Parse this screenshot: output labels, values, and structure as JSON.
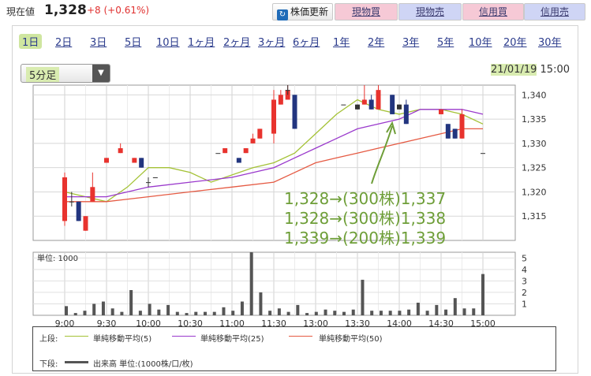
{
  "header": {
    "price_label": "現在値",
    "price_value": "1,328",
    "price_change": "+8 (+0.61%)",
    "buttons": {
      "refresh": "株価更新",
      "cash_buy": "現物買",
      "cash_sell": "現物売",
      "margin_buy": "信用買",
      "margin_sell": "信用売"
    }
  },
  "period_tabs": [
    "1日",
    "2日",
    "3日",
    "5日",
    "10日",
    "1ヶ月",
    "2ヶ月",
    "3ヶ月",
    "6ヶ月",
    "1年",
    "2年",
    "3年",
    "5年",
    "10年",
    "20年",
    "30年"
  ],
  "active_period": "1日",
  "range_select": {
    "value": "5分足"
  },
  "timestamp": {
    "date": "21/01/19",
    "time": "15:00"
  },
  "colors": {
    "up": "#e8332e",
    "down": "#22357f",
    "ma5": "#a4c236",
    "ma25": "#9a39cc",
    "ma50": "#e55a43",
    "volume": "#555555",
    "annotation": "#6e9e38"
  },
  "chart_data": [
    {
      "type": "candlestick",
      "title": "",
      "x_tick_labels": [
        "9:00",
        "9:30",
        "10:00",
        "10:30",
        "11:00",
        "11:30",
        "13:00",
        "13:30",
        "14:00",
        "14:30",
        "15:00"
      ],
      "y_ticks": [
        1315,
        1320,
        1325,
        1330,
        1335,
        1340
      ],
      "y_tick_labels": [
        "1,315",
        "1,320",
        "1,325",
        "1,330",
        "1,335",
        "1,340"
      ],
      "ylim": [
        1310,
        1342
      ],
      "candles": [
        {
          "t": "9:00",
          "o": 1323,
          "h": 1324,
          "l": 1313,
          "c": 1314,
          "dir": "up"
        },
        {
          "t": "9:05",
          "o": 1318,
          "h": 1320,
          "l": 1317,
          "c": 1318,
          "dir": "flat"
        },
        {
          "t": "9:10",
          "o": 1318,
          "h": 1318,
          "l": 1314,
          "c": 1314,
          "dir": "down"
        },
        {
          "t": "9:15",
          "o": 1315,
          "h": 1315,
          "l": 1312,
          "c": 1312,
          "dir": "up"
        },
        {
          "t": "9:20",
          "o": 1321,
          "h": 1324,
          "l": 1318,
          "c": 1318,
          "dir": "up"
        },
        {
          "t": "9:30",
          "o": 1327,
          "h": 1327,
          "l": 1326,
          "c": 1326,
          "dir": "up"
        },
        {
          "t": "9:40",
          "o": 1329,
          "h": 1330,
          "l": 1328,
          "c": 1328,
          "dir": "up"
        },
        {
          "t": "9:50",
          "o": 1327,
          "h": 1327,
          "l": 1326,
          "c": 1326,
          "dir": "up"
        },
        {
          "t": "9:55",
          "o": 1327,
          "h": 1327,
          "l": 1325,
          "c": 1325,
          "dir": "down"
        },
        {
          "t": "10:00",
          "o": 1322,
          "h": 1323,
          "l": 1321,
          "c": 1322,
          "dir": "flat"
        },
        {
          "t": "10:05",
          "o": 1323,
          "h": 1323,
          "l": 1323,
          "c": 1323,
          "dir": "flat"
        },
        {
          "t": "10:50",
          "o": 1328,
          "h": 1328,
          "l": 1328,
          "c": 1328,
          "dir": "flat"
        },
        {
          "t": "10:55",
          "o": 1329,
          "h": 1329,
          "l": 1328,
          "c": 1328,
          "dir": "up"
        },
        {
          "t": "11:05",
          "o": 1327,
          "h": 1327,
          "l": 1326,
          "c": 1326,
          "dir": "down"
        },
        {
          "t": "11:10",
          "o": 1329,
          "h": 1329,
          "l": 1328,
          "c": 1328,
          "dir": "up"
        },
        {
          "t": "11:15",
          "o": 1331,
          "h": 1332,
          "l": 1330,
          "c": 1330,
          "dir": "up"
        },
        {
          "t": "11:20",
          "o": 1333,
          "h": 1333,
          "l": 1331,
          "c": 1331,
          "dir": "up"
        },
        {
          "t": "11:30",
          "o": 1339,
          "h": 1341,
          "l": 1330,
          "c": 1332,
          "dir": "up"
        },
        {
          "t": "11:35",
          "o": 1340,
          "h": 1340,
          "l": 1338,
          "c": 1338,
          "dir": "up"
        },
        {
          "t": "11:40",
          "o": 1341,
          "h": 1342,
          "l": 1339,
          "c": 1339,
          "dir": "up"
        },
        {
          "t": "12:35",
          "o": 1339,
          "h": 1341,
          "l": 1339,
          "c": 1339,
          "dir": "up"
        },
        {
          "t": "12:40",
          "o": 1341,
          "h": 1342,
          "l": 1340,
          "c": 1341,
          "dir": "flat"
        },
        {
          "t": "12:45",
          "o": 1340,
          "h": 1340,
          "l": 1333,
          "c": 1333,
          "dir": "down"
        },
        {
          "t": "13:20",
          "o": 1338,
          "h": 1338,
          "l": 1338,
          "c": 1338,
          "dir": "flat"
        },
        {
          "t": "13:30",
          "o": 1338,
          "h": 1338,
          "l": 1337,
          "c": 1337,
          "dir": "flat"
        },
        {
          "t": "13:35",
          "o": 1339,
          "h": 1342,
          "l": 1338,
          "c": 1338,
          "dir": "up"
        },
        {
          "t": "13:40",
          "o": 1339,
          "h": 1340,
          "l": 1337,
          "c": 1337,
          "dir": "down"
        },
        {
          "t": "13:45",
          "o": 1341,
          "h": 1342,
          "l": 1337,
          "c": 1337,
          "dir": "up"
        },
        {
          "t": "13:55",
          "o": 1340,
          "h": 1340,
          "l": 1336,
          "c": 1336,
          "dir": "down"
        },
        {
          "t": "14:00",
          "o": 1338,
          "h": 1338,
          "l": 1337,
          "c": 1337,
          "dir": "flat"
        },
        {
          "t": "14:05",
          "o": 1338,
          "h": 1339,
          "l": 1334,
          "c": 1334,
          "dir": "down"
        },
        {
          "t": "14:30",
          "o": 1337,
          "h": 1337,
          "l": 1336,
          "c": 1336,
          "dir": "up"
        },
        {
          "t": "14:35",
          "o": 1334,
          "h": 1334,
          "l": 1331,
          "c": 1331,
          "dir": "down"
        },
        {
          "t": "14:40",
          "o": 1333,
          "h": 1333,
          "l": 1331,
          "c": 1331,
          "dir": "down"
        },
        {
          "t": "14:45",
          "o": 1336,
          "h": 1337,
          "l": 1331,
          "c": 1331,
          "dir": "up"
        },
        {
          "t": "15:00",
          "o": 1328,
          "h": 1328,
          "l": 1328,
          "c": 1328,
          "dir": "flat"
        }
      ],
      "moving_averages": [
        {
          "name": "単純移動平均(5)",
          "points": [
            [
              0,
              1320
            ],
            [
              0.05,
              1319
            ],
            [
              0.1,
              1318
            ],
            [
              0.15,
              1321
            ],
            [
              0.2,
              1325
            ],
            [
              0.25,
              1325
            ],
            [
              0.3,
              1324
            ],
            [
              0.35,
              1322
            ],
            [
              0.45,
              1325
            ],
            [
              0.5,
              1326
            ],
            [
              0.55,
              1328
            ],
            [
              0.6,
              1332
            ],
            [
              0.65,
              1336
            ],
            [
              0.7,
              1339
            ],
            [
              0.75,
              1337
            ],
            [
              0.8,
              1336
            ],
            [
              0.85,
              1337
            ],
            [
              0.9,
              1337
            ],
            [
              0.95,
              1336
            ],
            [
              1.0,
              1334
            ]
          ]
        },
        {
          "name": "単純移動平均(25)",
          "points": [
            [
              0,
              1319
            ],
            [
              0.05,
              1319
            ],
            [
              0.1,
              1319
            ],
            [
              0.2,
              1321
            ],
            [
              0.3,
              1322
            ],
            [
              0.4,
              1323
            ],
            [
              0.5,
              1325
            ],
            [
              0.55,
              1327
            ],
            [
              0.6,
              1329
            ],
            [
              0.65,
              1331
            ],
            [
              0.7,
              1333
            ],
            [
              0.75,
              1334
            ],
            [
              0.8,
              1335
            ],
            [
              0.85,
              1337
            ],
            [
              0.9,
              1337
            ],
            [
              0.95,
              1337
            ],
            [
              1.0,
              1336
            ]
          ]
        },
        {
          "name": "単純移動平均(50)",
          "points": [
            [
              0,
              1318
            ],
            [
              0.1,
              1318
            ],
            [
              0.2,
              1319
            ],
            [
              0.3,
              1320
            ],
            [
              0.4,
              1321
            ],
            [
              0.5,
              1322
            ],
            [
              0.55,
              1324
            ],
            [
              0.6,
              1326
            ],
            [
              0.65,
              1327
            ],
            [
              0.7,
              1328
            ],
            [
              0.75,
              1329
            ],
            [
              0.8,
              1330
            ],
            [
              0.85,
              1331
            ],
            [
              0.9,
              1332
            ],
            [
              0.95,
              1333
            ],
            [
              1.0,
              1333
            ]
          ]
        }
      ]
    },
    {
      "type": "bar",
      "title": "",
      "ylabel": "単位: 1000",
      "y_ticks": [
        1,
        2,
        3,
        4,
        5
      ],
      "ylim": [
        0,
        5.5
      ],
      "values": [
        0.8,
        0.2,
        0.4,
        1.0,
        1.2,
        0.6,
        0.3,
        2.2,
        0.4,
        1.0,
        0.5,
        0.9,
        0.3,
        0.2,
        0.3,
        0.3,
        0.3,
        0.7,
        0.4,
        1.2,
        5.9,
        2.0,
        0.4,
        0.6,
        0.3,
        0.9,
        0.2,
        0.3,
        0.5,
        0.4,
        0.3,
        0.5,
        3.1,
        0.4,
        0.4,
        0.4,
        0.4,
        0.5,
        1.1,
        0.4,
        0.9,
        0.5,
        1.5,
        0.6,
        0.6,
        3.6
      ]
    }
  ],
  "annotations": [
    "1,328→(300株)1,337",
    "1,328→(300株)1,338",
    "1,339→(200株)1,339"
  ],
  "legend": {
    "upper_label": "上段:",
    "lower_label": "下段:",
    "ma5": "単純移動平均(5)",
    "ma25": "単純移動平均(25)",
    "ma50": "単純移動平均(50)",
    "volume": "出来高 単位:(1000株/口/枚)"
  }
}
